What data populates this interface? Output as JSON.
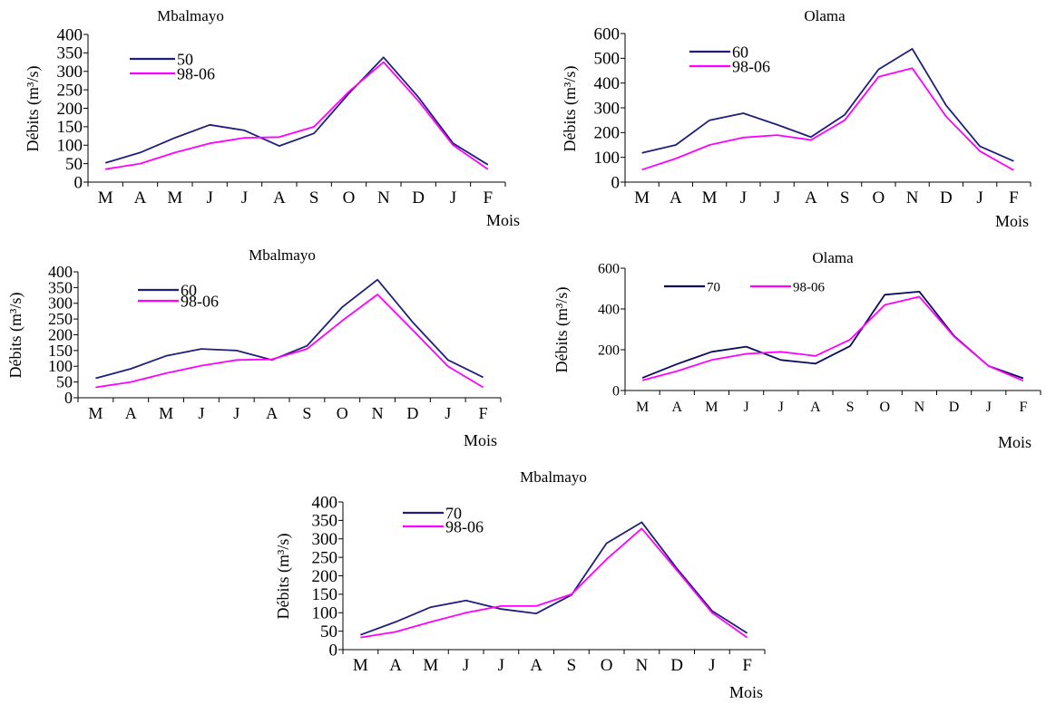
{
  "chart_data": [
    {
      "type": "line",
      "title": "Mbalmayo",
      "xlabel": "Mois",
      "ylabel": "Débits (m³/s)",
      "categories": [
        "M",
        "A",
        "M",
        "J",
        "J",
        "A",
        "S",
        "O",
        "N",
        "D",
        "J",
        "F"
      ],
      "ylim": [
        0,
        400
      ],
      "yticks": [
        0,
        50,
        100,
        150,
        200,
        250,
        300,
        350,
        400
      ],
      "legend": "top-left",
      "series": [
        {
          "name": "50",
          "color": "#1f1f7a",
          "values": [
            52,
            80,
            120,
            155,
            140,
            98,
            132,
            240,
            338,
            230,
            105,
            47
          ]
        },
        {
          "name": "98-06",
          "color": "#ff00ff",
          "values": [
            35,
            50,
            80,
            105,
            120,
            122,
            150,
            245,
            325,
            220,
            100,
            35
          ]
        }
      ]
    },
    {
      "type": "line",
      "title": "Olama",
      "xlabel": "Mois",
      "ylabel": "Débits (m³/s)",
      "categories": [
        "M",
        "A",
        "M",
        "J",
        "J",
        "A",
        "S",
        "O",
        "N",
        "D",
        "J",
        "F"
      ],
      "ylim": [
        0,
        600
      ],
      "yticks": [
        0,
        100,
        200,
        300,
        400,
        500,
        600
      ],
      "legend": "top-left",
      "series": [
        {
          "name": "60",
          "color": "#1f1f7a",
          "values": [
            118,
            150,
            250,
            278,
            232,
            182,
            272,
            455,
            538,
            310,
            145,
            85
          ]
        },
        {
          "name": "98-06",
          "color": "#ff00ff",
          "values": [
            50,
            95,
            150,
            180,
            190,
            170,
            250,
            425,
            460,
            265,
            125,
            48
          ]
        }
      ]
    },
    {
      "type": "line",
      "title": "Mbalmayo",
      "xlabel": "Mois",
      "ylabel": "Débits (m³/s)",
      "categories": [
        "M",
        "A",
        "M",
        "J",
        "J",
        "A",
        "S",
        "O",
        "N",
        "D",
        "J",
        "F"
      ],
      "ylim": [
        0,
        400
      ],
      "yticks": [
        0,
        50,
        100,
        150,
        200,
        250,
        300,
        350,
        400
      ],
      "legend": "top-left",
      "series": [
        {
          "name": "60",
          "color": "#1f1f7a",
          "values": [
            62,
            92,
            133,
            155,
            150,
            120,
            165,
            288,
            375,
            240,
            120,
            65
          ]
        },
        {
          "name": "98-06",
          "color": "#ff00ff",
          "values": [
            33,
            50,
            78,
            102,
            120,
            122,
            155,
            245,
            328,
            215,
            100,
            33
          ]
        }
      ]
    },
    {
      "type": "line",
      "title": "Olama",
      "xlabel": "Mois",
      "ylabel": "Débits (m³/s)",
      "categories": [
        "M",
        "A",
        "M",
        "J",
        "J",
        "A",
        "S",
        "O",
        "N",
        "D",
        "J",
        "F"
      ],
      "ylim": [
        0,
        600
      ],
      "yticks": [
        0,
        200,
        400,
        600
      ],
      "legend": "top",
      "series": [
        {
          "name": "70",
          "color": "#0a0a5e",
          "values": [
            62,
            130,
            190,
            215,
            150,
            132,
            218,
            470,
            485,
            268,
            120,
            60
          ]
        },
        {
          "name": "98-06",
          "color": "#ff00ff",
          "values": [
            50,
            95,
            150,
            180,
            190,
            170,
            250,
            420,
            460,
            265,
            120,
            48
          ]
        }
      ]
    },
    {
      "type": "line",
      "title": "Mbalmayo",
      "xlabel": "Mois",
      "ylabel": "Débits (m³/s)",
      "categories": [
        "M",
        "A",
        "M",
        "J",
        "J",
        "A",
        "S",
        "O",
        "N",
        "D",
        "J",
        "F"
      ],
      "ylim": [
        0,
        400
      ],
      "yticks": [
        0,
        50,
        100,
        150,
        200,
        250,
        300,
        350,
        400
      ],
      "legend": "top-left",
      "series": [
        {
          "name": "70",
          "color": "#1f1f7a",
          "values": [
            40,
            75,
            115,
            133,
            110,
            98,
            148,
            288,
            345,
            220,
            105,
            45
          ]
        },
        {
          "name": "98-06",
          "color": "#ff00ff",
          "values": [
            33,
            48,
            75,
            100,
            118,
            118,
            150,
            245,
            328,
            215,
            100,
            33
          ]
        }
      ]
    }
  ]
}
